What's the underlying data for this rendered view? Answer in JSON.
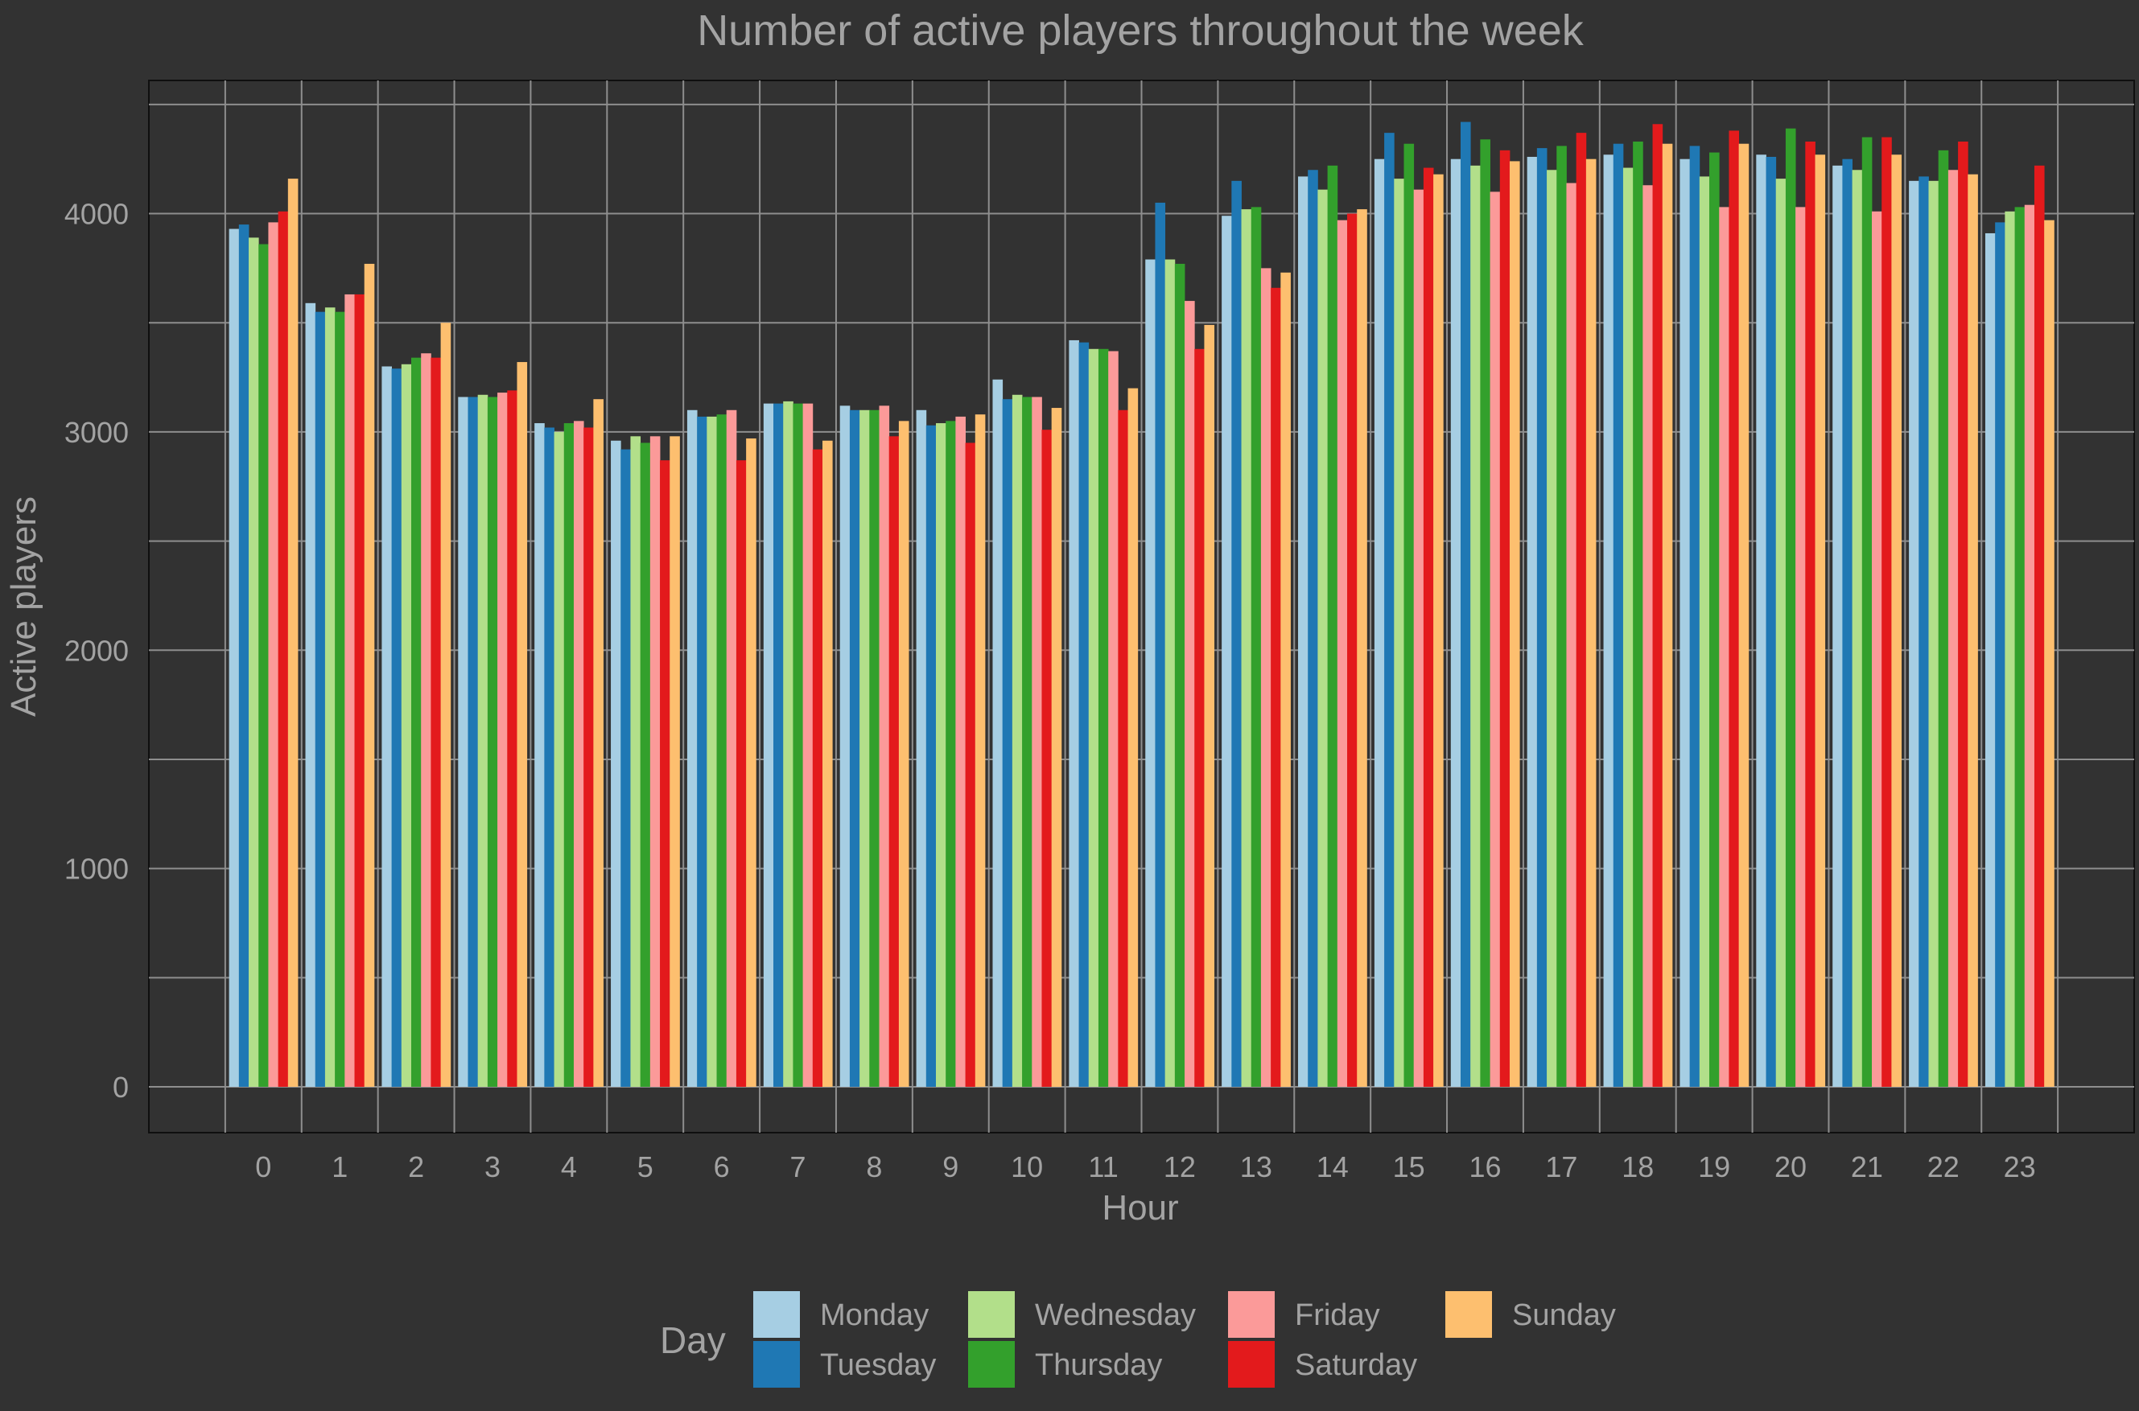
{
  "chart_data": {
    "type": "bar",
    "title": "Number of active players throughout the week",
    "xlabel": "Hour",
    "ylabel": "Active players",
    "ylim": [
      -210,
      4610
    ],
    "yticks": [
      0,
      1000,
      2000,
      3000,
      4000
    ],
    "grid": true,
    "legend_position": "bottom",
    "legend_title": "Day",
    "categories": [
      "0",
      "1",
      "2",
      "3",
      "4",
      "5",
      "6",
      "7",
      "8",
      "9",
      "10",
      "11",
      "12",
      "13",
      "14",
      "15",
      "16",
      "17",
      "18",
      "19",
      "20",
      "21",
      "22",
      "23"
    ],
    "series": [
      {
        "name": "Monday",
        "color": "#a6cee3",
        "values": [
          3930,
          3590,
          3300,
          3160,
          3040,
          2960,
          3100,
          3130,
          3120,
          3100,
          3240,
          3420,
          3790,
          3990,
          4170,
          4250,
          4250,
          4260,
          4270,
          4250,
          4270,
          4220,
          4150,
          3910
        ]
      },
      {
        "name": "Tuesday",
        "color": "#1f78b4",
        "values": [
          3950,
          3550,
          3290,
          3160,
          3020,
          2920,
          3070,
          3130,
          3100,
          3030,
          3150,
          3410,
          4050,
          4150,
          4200,
          4370,
          4420,
          4300,
          4320,
          4310,
          4260,
          4250,
          4170,
          3960
        ]
      },
      {
        "name": "Wednesday",
        "color": "#b2df8a",
        "values": [
          3890,
          3570,
          3310,
          3170,
          3000,
          2980,
          3070,
          3140,
          3100,
          3040,
          3170,
          3380,
          3790,
          4020,
          4110,
          4160,
          4220,
          4200,
          4210,
          4170,
          4160,
          4200,
          4150,
          4010
        ]
      },
      {
        "name": "Thursday",
        "color": "#33a02c",
        "values": [
          3860,
          3550,
          3340,
          3160,
          3040,
          2950,
          3080,
          3130,
          3100,
          3050,
          3160,
          3380,
          3770,
          4030,
          4220,
          4320,
          4340,
          4310,
          4330,
          4280,
          4390,
          4350,
          4290,
          4030
        ]
      },
      {
        "name": "Friday",
        "color": "#fb9a99",
        "values": [
          3960,
          3630,
          3360,
          3180,
          3050,
          2980,
          3100,
          3130,
          3120,
          3070,
          3160,
          3370,
          3600,
          3750,
          3970,
          4110,
          4100,
          4140,
          4130,
          4030,
          4030,
          4010,
          4200,
          4040
        ]
      },
      {
        "name": "Saturday",
        "color": "#e31a1c",
        "values": [
          4010,
          3630,
          3340,
          3190,
          3020,
          2870,
          2870,
          2920,
          2980,
          2950,
          3010,
          3100,
          3380,
          3660,
          4000,
          4210,
          4290,
          4370,
          4410,
          4380,
          4330,
          4350,
          4330,
          4220
        ]
      },
      {
        "name": "Sunday",
        "color": "#fdbf6f",
        "values": [
          4160,
          3770,
          3500,
          3320,
          3150,
          2980,
          2970,
          2960,
          3050,
          3080,
          3110,
          3200,
          3490,
          3730,
          4020,
          4180,
          4240,
          4250,
          4320,
          4320,
          4270,
          4270,
          4180,
          3970
        ]
      }
    ]
  }
}
